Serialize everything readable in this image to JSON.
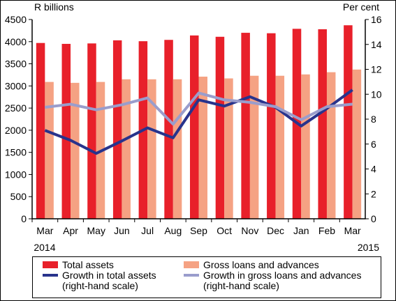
{
  "chart_data": {
    "type": "bar",
    "y_label": "R billions",
    "y2_label": "Per cent",
    "categories": [
      "Mar",
      "Apr",
      "May",
      "Jun",
      "Jul",
      "Aug",
      "Sep",
      "Oct",
      "Nov",
      "Dec",
      "Jan",
      "Feb",
      "Mar"
    ],
    "year_start": "2014",
    "year_end": "2015",
    "series": [
      {
        "name": "Total assets",
        "type": "bar",
        "color": "#e8202a",
        "values": [
          3970,
          3950,
          3960,
          4030,
          4010,
          4040,
          4140,
          4110,
          4200,
          4190,
          4290,
          4280,
          4370
        ]
      },
      {
        "name": "Gross loans and advances",
        "type": "bar",
        "color": "#f5a283",
        "values": [
          3090,
          3070,
          3090,
          3150,
          3150,
          3150,
          3210,
          3170,
          3230,
          3230,
          3260,
          3310,
          3370
        ]
      },
      {
        "name": "Growth in total assets (right-hand scale)",
        "type": "line",
        "axis": "y2",
        "color": "#28338c",
        "values": [
          7.1,
          6.3,
          5.25,
          6.25,
          7.3,
          6.5,
          9.55,
          9.05,
          9.8,
          8.95,
          7.45,
          8.85,
          10.35
        ]
      },
      {
        "name": "Growth in gross loans and advances (right-hand scale)",
        "type": "line",
        "axis": "y2",
        "color": "#9a9dcc",
        "values": [
          8.95,
          9.2,
          8.75,
          9.15,
          9.7,
          7.6,
          10.1,
          9.55,
          9.35,
          9.0,
          7.95,
          9.0,
          9.2
        ]
      }
    ],
    "ylim": [
      0,
      4500
    ],
    "yticks": [
      0,
      500,
      1000,
      1500,
      2000,
      2500,
      3000,
      3500,
      4000,
      4500
    ],
    "y2lim": [
      0,
      16
    ],
    "y2ticks": [
      0,
      2,
      4,
      6,
      8,
      10,
      12,
      14,
      16
    ]
  }
}
